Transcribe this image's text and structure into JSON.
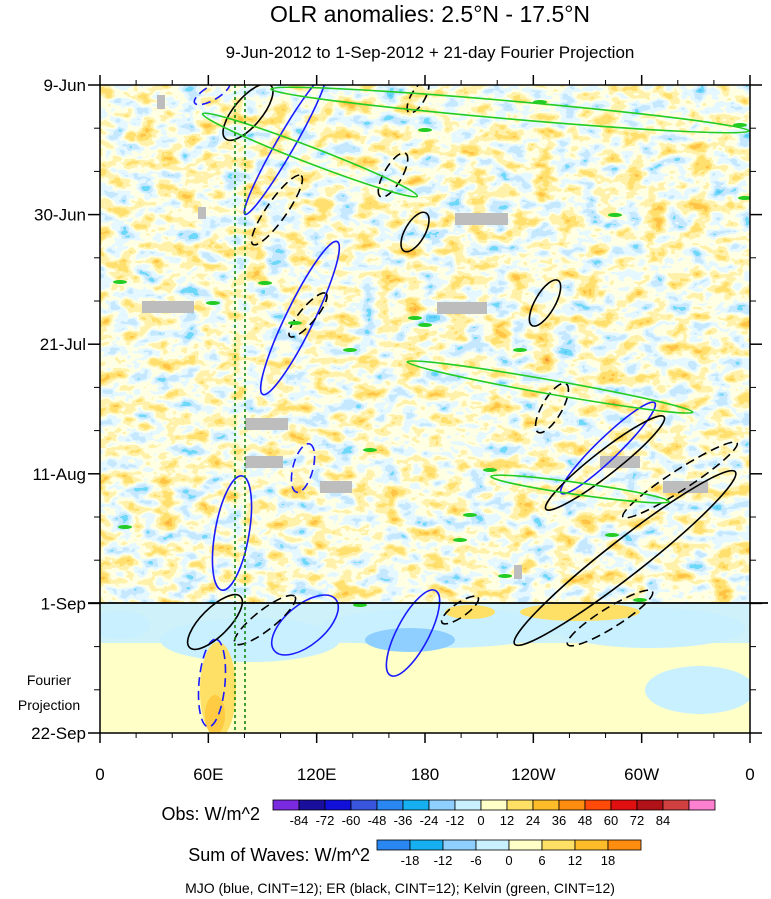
{
  "chart_data": {
    "type": "heatmap",
    "title": "OLR anomalies: 2.5°N - 17.5°N",
    "subtitle": "9-Jun-2012 to 1-Sep-2012 + 21-day Fourier Projection",
    "x_axis": {
      "ticks": [
        "0",
        "60E",
        "120E",
        "180",
        "120W",
        "60W",
        "0"
      ],
      "range_deg_east": [
        0,
        360
      ]
    },
    "y_axis": {
      "ticks": [
        "9-Jun",
        "30-Jun",
        "21-Jul",
        "11-Aug",
        "1-Sep",
        "22-Sep"
      ],
      "range_dates": [
        "2012-06-09",
        "2012-09-22"
      ],
      "observation_end": "1-Sep",
      "projection_label_line1": "Fourier",
      "projection_label_line2": "Projection"
    },
    "obs_colorbar": {
      "label": "Obs: W/m^2",
      "levels": [
        "-84",
        "-72",
        "-60",
        "-48",
        "-36",
        "-24",
        "-12",
        "0",
        "12",
        "24",
        "36",
        "48",
        "60",
        "72",
        "84"
      ],
      "colors": [
        "#7a2be0",
        "#1a0f9c",
        "#1010d8",
        "#3a55dd",
        "#2a86f0",
        "#16b0f0",
        "#8fcfff",
        "#c9f0ff",
        "#ffffc8",
        "#ffe066",
        "#ffbc2a",
        "#ff8d10",
        "#ff4a0a",
        "#e01010",
        "#b01218",
        "#d04040",
        "#ff7fd0"
      ]
    },
    "waves_colorbar": {
      "label": "Sum of Waves: W/m^2",
      "levels": [
        "-18",
        "-12",
        "-6",
        "0",
        "6",
        "12",
        "18"
      ],
      "colors": [
        "#2a86f0",
        "#16b0f0",
        "#8fcfff",
        "#c9f0ff",
        "#ffffc8",
        "#ffe066",
        "#ffbc2a",
        "#ff8d10"
      ]
    },
    "footnote": "MJO (blue, CINT=12); ER (black, CINT=12); Kelvin (green, CINT=12)",
    "series_colors": {
      "MJO": "#1a1aff",
      "ER": "#000000",
      "Kelvin": "#22cc22"
    },
    "reference_longitudes_deg_east": [
      75,
      80
    ],
    "grid": false
  }
}
